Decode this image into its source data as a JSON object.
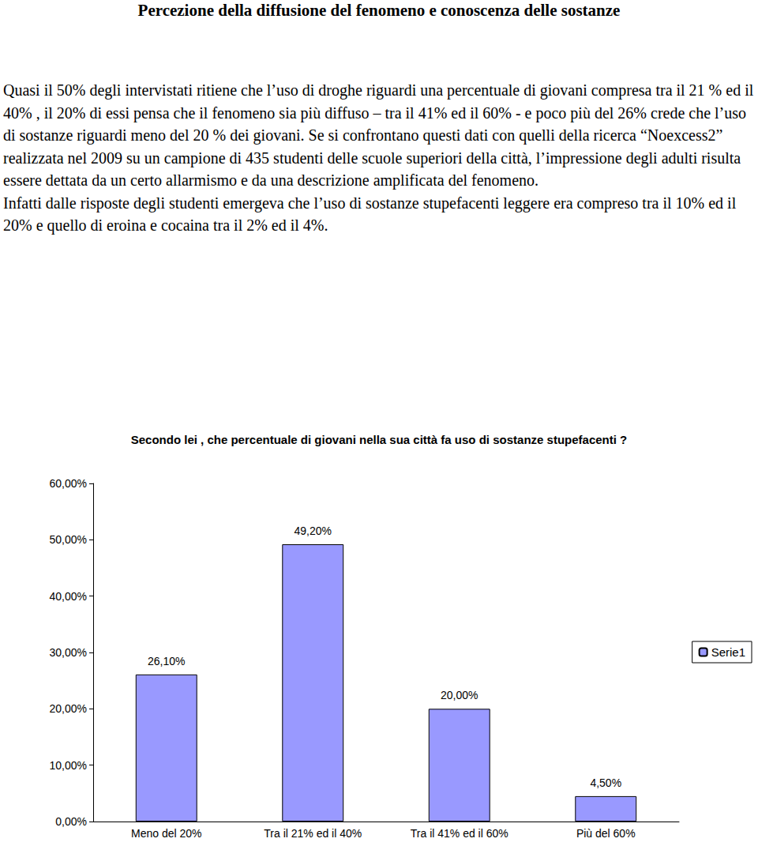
{
  "heading": "Percezione della diffusione del fenomeno e conoscenza delle sostanze",
  "paragraphs": [
    "Quasi il 50% degli intervistati ritiene che l’uso di droghe riguardi una percentuale di giovani compresa tra il 21 % ed il 40% , il 20% di essi pensa che il fenomeno sia più diffuso – tra il 41% ed il 60% - e poco più del 26% crede che l’uso di sostanze riguardi meno del 20 % dei giovani. Se si confrontano questi dati con quelli della ricerca “Noexcess2” realizzata nel 2009 su un campione di 435 studenti delle scuole superiori della città, l’impressione degli adulti risulta essere dettata da un certo allarmismo e da una descrizione amplificata del fenomeno.",
    "Infatti dalle risposte degli studenti emergeva che l’uso di sostanze stupefacenti leggere era compreso tra il 10% ed il 20% e quello di eroina e cocaina tra il 2% ed il 4%."
  ],
  "chart_data": {
    "type": "bar",
    "title": "Secondo lei , che percentuale di giovani nella sua città fa uso di sostanze stupefacenti ?",
    "categories": [
      "Meno del 20%",
      "Tra il 21% ed il 40%",
      "Tra il 41% ed il 60%",
      "Più del 60%"
    ],
    "series": [
      {
        "name": "Serie1",
        "color": "#9999ff",
        "values": [
          26.1,
          49.2,
          20.0,
          4.5
        ],
        "value_labels": [
          "26,10%",
          "49,20%",
          "20,00%",
          "4,50%"
        ]
      }
    ],
    "ylim": [
      0,
      60
    ],
    "yticks": [
      {
        "value": 0,
        "label": "0,00%"
      },
      {
        "value": 10,
        "label": "10,00%"
      },
      {
        "value": 20,
        "label": "20,00%"
      },
      {
        "value": 30,
        "label": "30,00%"
      },
      {
        "value": 40,
        "label": "40,00%"
      },
      {
        "value": 50,
        "label": "50,00%"
      },
      {
        "value": 60,
        "label": "60,00%"
      }
    ],
    "grid": false,
    "legend": "right",
    "data_labels": true
  }
}
